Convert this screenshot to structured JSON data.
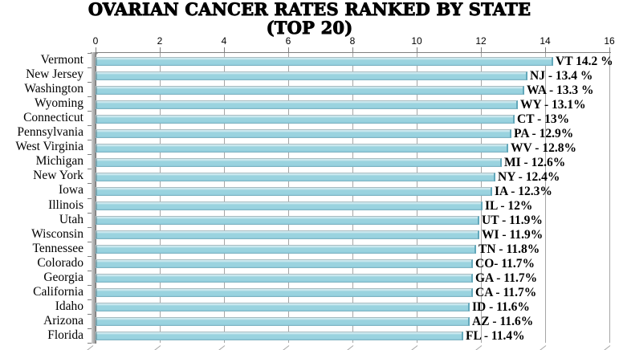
{
  "page": {
    "background": "#FFFFFF"
  },
  "chart_data": {
    "type": "bar",
    "orientation": "horizontal",
    "title": "OVARIAN CANCER RATES RANKED BY STATE",
    "subtitle": "(TOP 20)",
    "categories": [
      "Vermont",
      "New Jersey",
      "Washington",
      "Wyoming",
      "Connecticut",
      "Pennsylvania",
      "West Virginia",
      "Michigan",
      "New York",
      "Iowa",
      "Illinois",
      "Utah",
      "Wisconsin",
      "Tennessee",
      "Colorado",
      "Georgia",
      "California",
      "Idaho",
      "Arizona",
      "Florida"
    ],
    "values": [
      14.2,
      13.4,
      13.3,
      13.1,
      13.0,
      12.9,
      12.8,
      12.6,
      12.4,
      12.3,
      12.0,
      11.9,
      11.9,
      11.8,
      11.7,
      11.7,
      11.7,
      11.6,
      11.6,
      11.4
    ],
    "bar_labels": [
      "VT 14.2 %",
      "NJ - 13.4 %",
      "WA - 13.3 %",
      "WY - 13.1%",
      "CT - 13%",
      "PA - 12.9%",
      "WV - 12.8%",
      "MI - 12.6%",
      "NY - 12.4%",
      "IA - 12.3%",
      "IL - 12%",
      "UT - 11.9%",
      "WI - 11.9%",
      "TN - 11.8%",
      "CO- 11.7%",
      "GA - 11.7%",
      "CA - 11.7%",
      "ID - 11.6%",
      "AZ - 11.6%",
      "FL - 11.4%"
    ],
    "xlim": [
      0,
      16
    ],
    "xticks": [
      0,
      2,
      4,
      6,
      8,
      10,
      12,
      14,
      16
    ],
    "grid": true,
    "legend": false,
    "xlabel": "",
    "ylabel": "",
    "colors": {
      "bar_fill": "#9AD3DF",
      "bar_highlight": "#CDE9EF",
      "bar_shade": "#8ECADA",
      "bar_edge": "#62A8BB",
      "grid_line": "#A6A6A6",
      "axis_line": "#7F7F7F",
      "text": "#000000",
      "background": "#FFFFFF"
    }
  }
}
